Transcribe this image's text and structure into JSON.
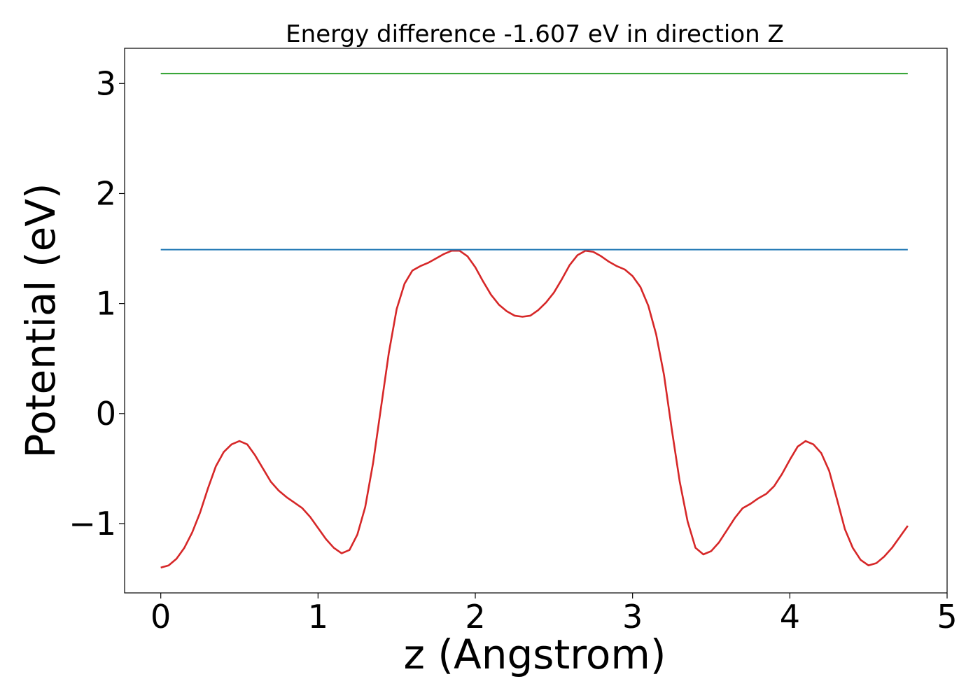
{
  "chart_data": {
    "type": "line",
    "title": "Energy difference -1.607 eV in direction Z",
    "xlabel": "z (Angstrom)",
    "ylabel": "Potential (eV)",
    "xlim": [
      -0.23,
      5.0
    ],
    "ylim": [
      -1.63,
      3.32
    ],
    "xticks": [
      0,
      1,
      2,
      3,
      4,
      5
    ],
    "xtick_labels": [
      "0",
      "1",
      "2",
      "3",
      "4",
      "5"
    ],
    "yticks": [
      3,
      2,
      1,
      0,
      -1
    ],
    "ytick_labels": [
      "3",
      "2",
      "1",
      "0",
      "−1"
    ],
    "grid": false,
    "series": [
      {
        "color": "#d62728",
        "x": [
          0,
          0.05,
          0.1,
          0.15,
          0.2,
          0.25,
          0.3,
          0.35,
          0.4,
          0.45,
          0.5,
          0.55,
          0.6,
          0.65,
          0.7,
          0.75,
          0.8,
          0.85,
          0.9,
          0.95,
          1.0,
          1.05,
          1.1,
          1.15,
          1.2,
          1.25,
          1.3,
          1.35,
          1.4,
          1.45,
          1.5,
          1.55,
          1.6,
          1.65,
          1.7,
          1.75,
          1.8,
          1.85,
          1.9,
          1.95,
          2.0,
          2.05,
          2.1,
          2.15,
          2.2,
          2.25,
          2.3,
          2.35,
          2.4,
          2.45,
          2.5,
          2.55,
          2.6,
          2.65,
          2.7,
          2.75,
          2.8,
          2.85,
          2.9,
          2.95,
          3.0,
          3.05,
          3.1,
          3.15,
          3.2,
          3.25,
          3.3,
          3.35,
          3.4,
          3.45,
          3.5,
          3.55,
          3.6,
          3.65,
          3.7,
          3.75,
          3.8,
          3.85,
          3.9,
          3.95,
          4.0,
          4.05,
          4.1,
          4.15,
          4.2,
          4.25,
          4.3,
          4.35,
          4.4,
          4.45,
          4.5,
          4.55,
          4.6,
          4.65,
          4.7,
          4.75
        ],
        "y": [
          -1.4,
          -1.38,
          -1.32,
          -1.22,
          -1.08,
          -0.9,
          -0.68,
          -0.48,
          -0.35,
          -0.28,
          -0.25,
          -0.28,
          -0.38,
          -0.5,
          -0.62,
          -0.7,
          -0.76,
          -0.81,
          -0.86,
          -0.94,
          -1.04,
          -1.14,
          -1.22,
          -1.27,
          -1.24,
          -1.1,
          -0.85,
          -0.45,
          0.05,
          0.55,
          0.95,
          1.18,
          1.3,
          1.34,
          1.37,
          1.41,
          1.45,
          1.48,
          1.48,
          1.43,
          1.33,
          1.2,
          1.08,
          0.99,
          0.93,
          0.89,
          0.88,
          0.89,
          0.94,
          1.01,
          1.1,
          1.22,
          1.35,
          1.44,
          1.48,
          1.47,
          1.43,
          1.38,
          1.34,
          1.31,
          1.25,
          1.15,
          0.98,
          0.72,
          0.35,
          -0.15,
          -0.62,
          -0.98,
          -1.22,
          -1.28,
          -1.25,
          -1.17,
          -1.06,
          -0.95,
          -0.86,
          -0.82,
          -0.77,
          -0.73,
          -0.66,
          -0.55,
          -0.42,
          -0.3,
          -0.25,
          -0.28,
          -0.36,
          -0.52,
          -0.78,
          -1.05,
          -1.22,
          -1.33,
          -1.38,
          -1.36,
          -1.3,
          -1.22,
          -1.12,
          -1.02
        ]
      },
      {
        "color": "#1f77b4",
        "x": [
          0,
          4.75
        ],
        "y": [
          1.49,
          1.49
        ]
      },
      {
        "color": "#2ca02c",
        "x": [
          0,
          4.75
        ],
        "y": [
          3.09,
          3.09
        ]
      }
    ]
  }
}
